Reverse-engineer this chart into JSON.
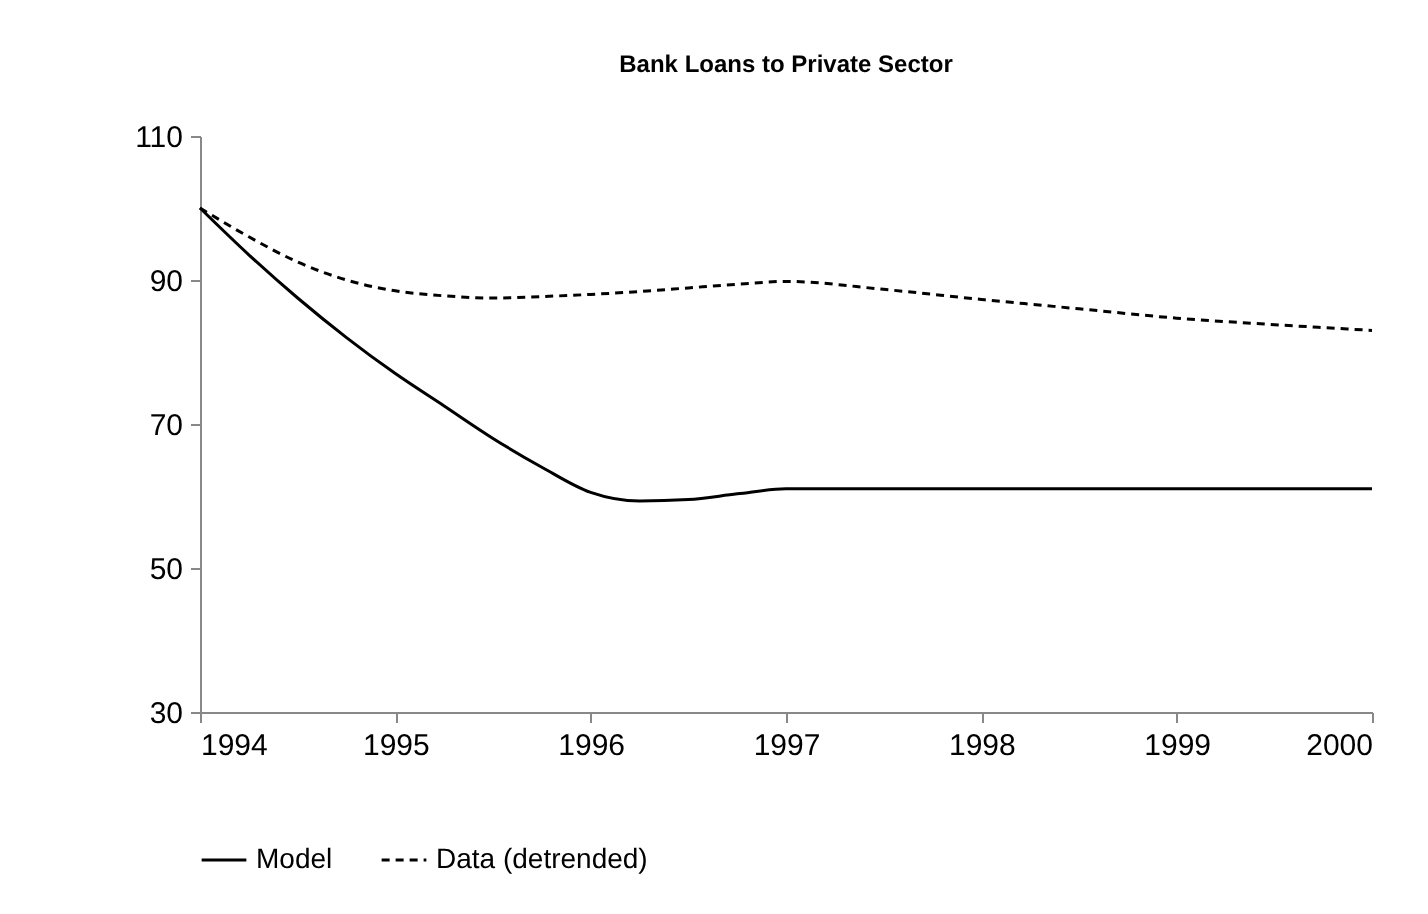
{
  "chart_data": {
    "type": "line",
    "title": "Bank Loans to Private Sector",
    "x": [
      1994,
      1994.25,
      1994.5,
      1994.75,
      1995,
      1995.25,
      1995.5,
      1995.75,
      1996,
      1996.25,
      1996.5,
      1996.75,
      1997,
      1997.5,
      1998,
      1998.5,
      1999,
      1999.5,
      2000
    ],
    "series": [
      {
        "name": "Model",
        "color": "#000000",
        "line_style": "solid",
        "values": [
          100,
          93.5,
          87.5,
          82,
          77,
          72.5,
          68,
          64,
          60.5,
          59.3,
          59.5,
          60.3,
          61,
          61,
          61,
          61,
          61,
          61,
          61
        ]
      },
      {
        "name": "Data (detrended)",
        "color": "#000000",
        "line_style": "dashed",
        "values": [
          100,
          96,
          92.5,
          90,
          88.5,
          87.8,
          87.5,
          87.7,
          88,
          88.4,
          88.9,
          89.4,
          89.8,
          88.7,
          87.3,
          86,
          84.7,
          83.8,
          83
        ]
      }
    ],
    "xlim": [
      1994,
      2000
    ],
    "xticks": [
      1994,
      1995,
      1996,
      1997,
      1998,
      1999,
      2000
    ],
    "ylim": [
      30,
      110
    ],
    "yticks": [
      30,
      50,
      70,
      90,
      110
    ],
    "grid": false,
    "legend": "bottom",
    "marker": "none"
  }
}
